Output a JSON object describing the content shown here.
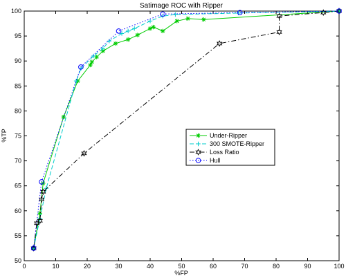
{
  "chart_data": {
    "type": "line",
    "title": "Satimage ROC with Ripper",
    "xlabel": "%FP",
    "ylabel": "%TP",
    "xlim": [
      0,
      100
    ],
    "ylim": [
      50,
      100
    ],
    "xticks": [
      "0",
      "10",
      "20",
      "30",
      "40",
      "50",
      "60",
      "70",
      "80",
      "90",
      "100"
    ],
    "yticks": [
      "50",
      "55",
      "60",
      "65",
      "70",
      "75",
      "80",
      "85",
      "90",
      "95",
      "100"
    ],
    "grid": false,
    "legend_position": "center-right",
    "series": [
      {
        "name": "Under-Ripper",
        "color": "#00cc00",
        "marker": "star",
        "dash": "solid",
        "x": [
          3,
          5,
          6,
          12.5,
          17,
          21,
          21.5,
          23,
          25,
          29,
          33,
          36,
          40,
          41,
          44,
          48.5,
          52,
          57,
          100
        ],
        "y": [
          52.5,
          59.5,
          65.5,
          78.8,
          86,
          89.2,
          89.8,
          90.8,
          92,
          93.5,
          94.3,
          95.2,
          96.5,
          96.8,
          96,
          98,
          98.5,
          98.3,
          100
        ]
      },
      {
        "name": "300 SMOTE-Ripper",
        "color": "#00cccc",
        "marker": "plus",
        "dash": "dashed",
        "x": [
          3,
          5,
          7,
          16.5,
          18,
          22,
          25,
          27,
          31,
          33,
          35,
          40,
          44,
          48,
          68,
          100
        ],
        "y": [
          52.5,
          58.5,
          64.5,
          86,
          88.5,
          91,
          92.5,
          94,
          95.5,
          96,
          96.5,
          98,
          99,
          99.3,
          99.6,
          100
        ]
      },
      {
        "name": "Loss Ratio",
        "color": "#000000",
        "marker": "hexagram",
        "dash": "dashdot",
        "x": [
          3,
          4,
          5,
          5.5,
          6,
          19,
          62,
          81,
          81,
          95,
          100
        ],
        "y": [
          52.5,
          57.5,
          58,
          62.3,
          63.8,
          71.5,
          93.5,
          95.8,
          99,
          99.7,
          100
        ]
      },
      {
        "name": "Hull",
        "color": "#0000ff",
        "marker": "circle",
        "dash": "dotted",
        "x": [
          3,
          5.5,
          18,
          30,
          44,
          68.5,
          100
        ],
        "y": [
          52.5,
          65.8,
          88.8,
          96,
          99.4,
          99.7,
          100
        ]
      }
    ]
  }
}
